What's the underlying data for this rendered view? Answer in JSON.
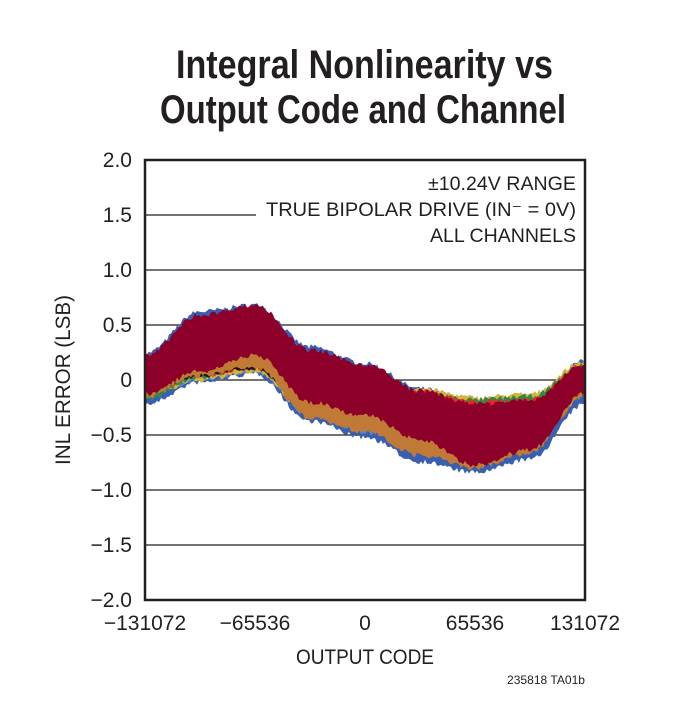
{
  "chart_data": {
    "type": "area",
    "title": [
      "Integral Nonlinearity vs",
      "Output Code and Channel"
    ],
    "xlabel": "OUTPUT CODE",
    "ylabel": "INL ERROR (LSB)",
    "xlim": [
      -131072,
      131072
    ],
    "ylim": [
      -2.0,
      2.0
    ],
    "x_ticks": [
      -131072,
      -65536,
      0,
      65536,
      131072
    ],
    "x_tick_labels": [
      "−131072",
      "−65536",
      "0",
      "65536",
      "131072"
    ],
    "y_ticks": [
      2.0,
      1.5,
      1.0,
      0.5,
      0,
      -0.5,
      -1.0,
      -1.5,
      -2.0
    ],
    "y_tick_labels": [
      "2.0",
      "1.5",
      "1.0",
      "0.5",
      "0",
      "−0.5",
      "−1.0",
      "−1.5",
      "−2.0"
    ],
    "grid": true,
    "annotation": [
      "±10.24V RANGE",
      "TRUE BIPOLAR DRIVE (IN⁻ = 0V)",
      "ALL CHANNELS"
    ],
    "footnote": "235818 TA01b",
    "x": [
      -131072,
      -98304,
      -65536,
      -32768,
      0,
      32768,
      65536,
      98304,
      131072
    ],
    "series": [
      {
        "color": "#3b5fb0",
        "upper": [
          0.22,
          0.6,
          0.66,
          0.28,
          0.13,
          -0.1,
          -0.22,
          -0.19,
          0.15
        ],
        "lower": [
          -0.2,
          0.0,
          0.08,
          -0.35,
          -0.5,
          -0.72,
          -0.82,
          -0.7,
          -0.2
        ]
      },
      {
        "color": "#5b8ac8",
        "upper": [
          0.1,
          0.2,
          0.2,
          -0.2,
          -0.3,
          -0.45,
          -0.55,
          -0.5,
          -0.1
        ],
        "lower": [
          -0.12,
          0.02,
          0.1,
          -0.3,
          -0.45,
          -0.62,
          -0.7,
          -0.6,
          -0.12
        ]
      },
      {
        "color": "#d4b43a",
        "upper": [
          0.15,
          0.3,
          0.3,
          -0.05,
          -0.2,
          -0.1,
          -0.18,
          -0.15,
          0.15
        ],
        "lower": [
          -0.13,
          0.02,
          0.1,
          -0.28,
          -0.42,
          -0.62,
          -0.72,
          -0.6,
          -0.12
        ]
      },
      {
        "color": "#2e8b47",
        "upper": [
          0.18,
          0.33,
          0.32,
          -0.02,
          -0.15,
          -0.13,
          -0.2,
          -0.17,
          0.12
        ],
        "lower": [
          -0.15,
          0.05,
          0.15,
          -0.25,
          -0.4,
          -0.6,
          -0.72,
          -0.6,
          -0.12
        ]
      },
      {
        "color": "#e8262c",
        "upper": [
          0.2,
          0.35,
          0.3,
          0.0,
          -0.1,
          -0.12,
          -0.22,
          -0.2,
          0.12
        ],
        "lower": [
          -0.1,
          0.06,
          0.13,
          -0.22,
          -0.38,
          -0.55,
          -0.7,
          -0.6,
          -0.1
        ]
      },
      {
        "color": "#1a1a1a",
        "upper": [
          0.15,
          0.28,
          0.25,
          -0.1,
          -0.2,
          -0.16,
          -0.25,
          -0.22,
          0.1
        ],
        "lower": [
          -0.1,
          0.06,
          0.13,
          -0.27,
          -0.4,
          -0.58,
          -0.72,
          -0.6,
          -0.1
        ]
      },
      {
        "color": "#c07a35",
        "upper": [
          0.15,
          0.3,
          0.28,
          0.0,
          -0.15,
          -0.3,
          -0.45,
          -0.4,
          0.0
        ],
        "lower": [
          -0.13,
          0.06,
          0.14,
          -0.32,
          -0.45,
          -0.66,
          -0.78,
          -0.64,
          -0.13
        ]
      },
      {
        "color": "#8c0029",
        "upper": [
          0.2,
          0.57,
          0.66,
          0.25,
          0.12,
          -0.12,
          -0.24,
          -0.21,
          0.12
        ],
        "lower": [
          -0.1,
          0.1,
          0.25,
          -0.18,
          -0.3,
          -0.52,
          -0.75,
          -0.61,
          -0.1
        ]
      }
    ]
  }
}
